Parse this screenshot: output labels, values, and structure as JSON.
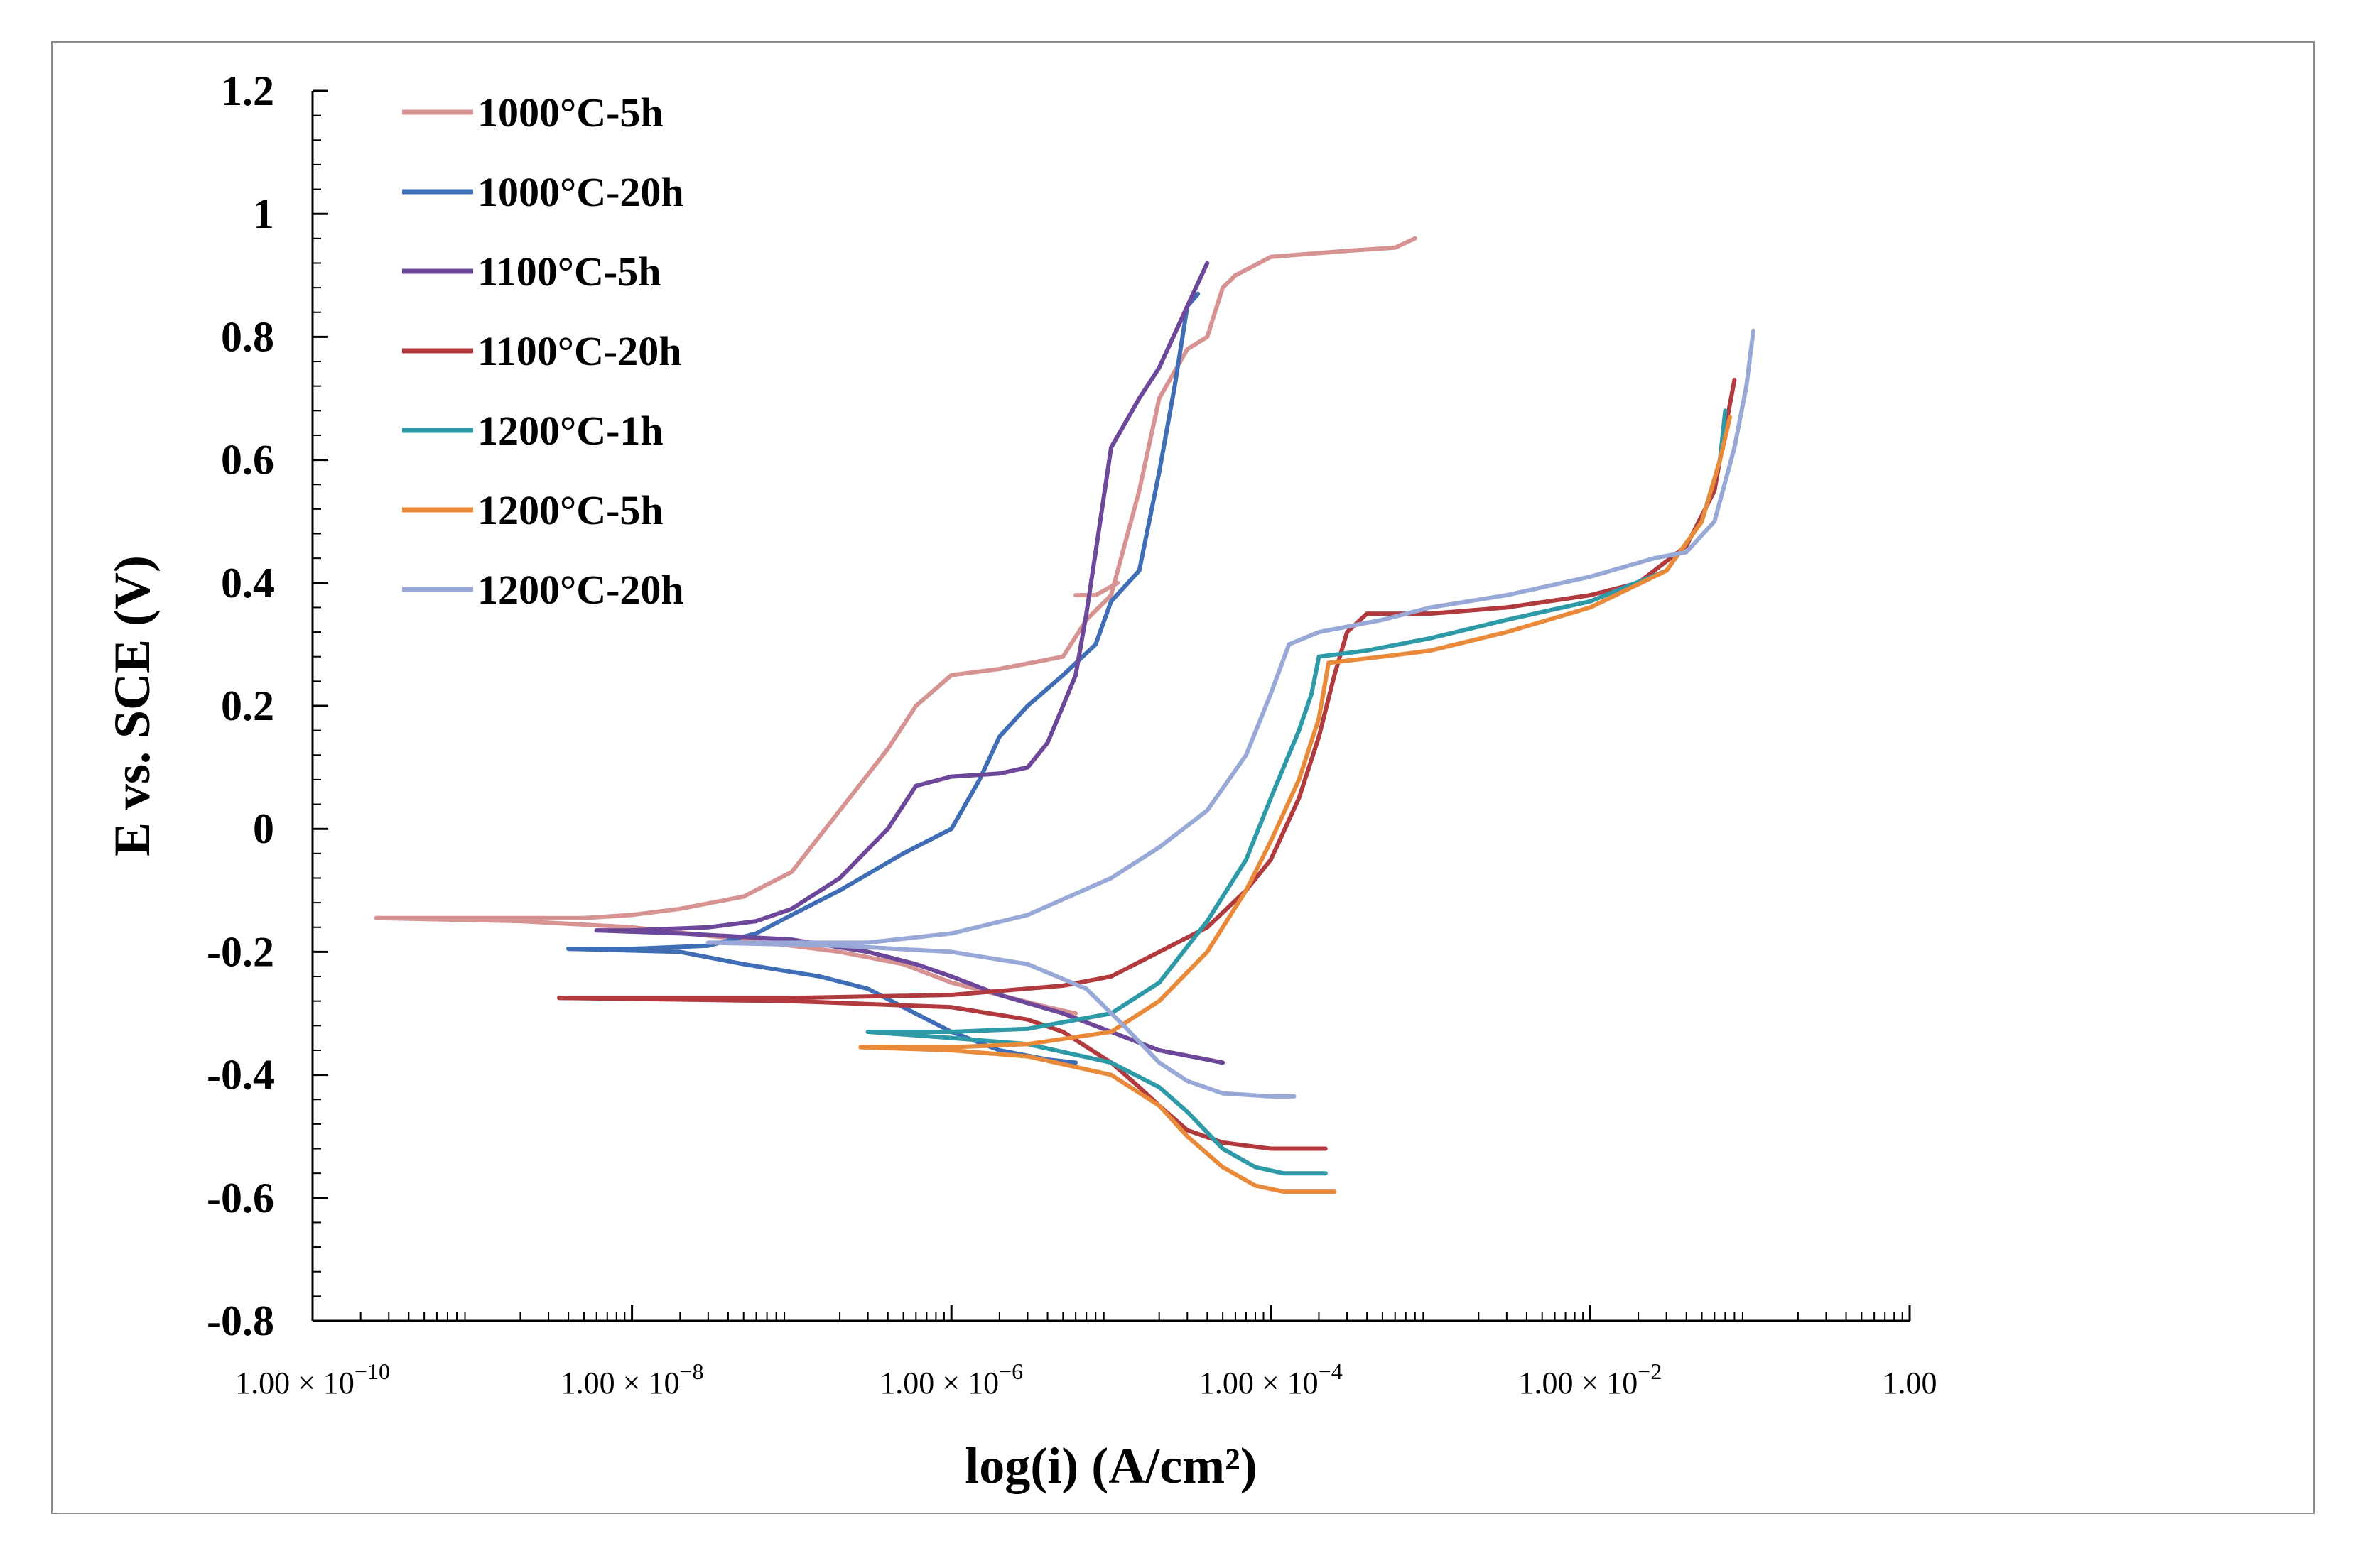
{
  "chart_data": {
    "type": "line",
    "title": "",
    "xlabel": "log(i) (A/cm²)",
    "ylabel": "E vs. SCE (V)",
    "xscale": "log",
    "xlim": [
      1e-10,
      1
    ],
    "ylim": [
      -0.8,
      1.2
    ],
    "yticks": [
      -0.8,
      -0.6,
      -0.4,
      -0.2,
      0,
      0.2,
      0.4,
      0.6,
      0.8,
      1,
      1.2
    ],
    "ytick_labels": [
      "-0.8",
      "-0.6",
      "-0.4",
      "-0.2",
      "0",
      "0.2",
      "0.4",
      "0.6",
      "0.8",
      "1",
      "1.2"
    ],
    "xticks": [
      1e-10,
      1e-08,
      1e-06,
      0.0001,
      0.01,
      1
    ],
    "xtick_labels": [
      {
        "mantissa": "1.00 × 10",
        "exp": "−10"
      },
      {
        "mantissa": "1.00 × 10",
        "exp": "−8"
      },
      {
        "mantissa": "1.00 × 10",
        "exp": "−6"
      },
      {
        "mantissa": "1.00 × 10",
        "exp": "−4"
      },
      {
        "mantissa": "1.00 × 10",
        "exp": "−2"
      },
      {
        "mantissa": "1.00",
        "exp": ""
      }
    ],
    "grid": false,
    "legend_position": "top-left",
    "series": [
      {
        "name": "1000°C-5h",
        "color": "#d69392",
        "points": [
          [
            2.5e-10,
            -0.145
          ],
          [
            1e-09,
            -0.145
          ],
          [
            5e-09,
            -0.145
          ],
          [
            1e-08,
            -0.14
          ],
          [
            2e-08,
            -0.13
          ],
          [
            5e-08,
            -0.11
          ],
          [
            1e-07,
            -0.07
          ],
          [
            2e-07,
            0.03
          ],
          [
            4e-07,
            0.13
          ],
          [
            6e-07,
            0.2
          ],
          [
            1e-06,
            0.25
          ],
          [
            2e-06,
            0.26
          ],
          [
            5e-06,
            0.28
          ],
          [
            7e-06,
            0.34
          ],
          [
            1e-05,
            0.38
          ],
          [
            1.5e-05,
            0.55
          ],
          [
            2e-05,
            0.7
          ],
          [
            3e-05,
            0.78
          ],
          [
            4e-05,
            0.8
          ],
          [
            5e-05,
            0.88
          ],
          [
            6e-05,
            0.9
          ],
          [
            0.0001,
            0.93
          ],
          [
            0.0003,
            0.94
          ],
          [
            0.0006,
            0.945
          ],
          [
            0.0008,
            0.96
          ]
        ],
        "cathodic": [
          [
            2.5e-10,
            -0.145
          ],
          [
            2e-09,
            -0.15
          ],
          [
            1e-08,
            -0.16
          ],
          [
            5e-08,
            -0.18
          ],
          [
            2e-07,
            -0.2
          ],
          [
            5e-07,
            -0.22
          ],
          [
            1e-06,
            -0.25
          ],
          [
            2e-06,
            -0.27
          ],
          [
            4e-06,
            -0.29
          ],
          [
            6e-06,
            -0.3
          ]
        ],
        "extra": [
          [
            6e-06,
            0.38
          ],
          [
            8e-06,
            0.38
          ],
          [
            1.1e-05,
            0.4
          ]
        ]
      },
      {
        "name": "1000°C-20h",
        "color": "#3f6db6",
        "points": [
          [
            4e-09,
            -0.195
          ],
          [
            1e-08,
            -0.195
          ],
          [
            3e-08,
            -0.19
          ],
          [
            6e-08,
            -0.17
          ],
          [
            1e-07,
            -0.14
          ],
          [
            2e-07,
            -0.1
          ],
          [
            5e-07,
            -0.04
          ],
          [
            1e-06,
            0.0
          ],
          [
            1.5e-06,
            0.08
          ],
          [
            2e-06,
            0.15
          ],
          [
            3e-06,
            0.2
          ],
          [
            5e-06,
            0.25
          ],
          [
            8e-06,
            0.3
          ],
          [
            1e-05,
            0.37
          ],
          [
            1.5e-05,
            0.42
          ],
          [
            2e-05,
            0.58
          ],
          [
            2.5e-05,
            0.72
          ],
          [
            3e-05,
            0.85
          ],
          [
            3.5e-05,
            0.87
          ]
        ],
        "cathodic": [
          [
            4e-09,
            -0.195
          ],
          [
            2e-08,
            -0.2
          ],
          [
            5e-08,
            -0.22
          ],
          [
            1.5e-07,
            -0.24
          ],
          [
            3e-07,
            -0.26
          ],
          [
            5e-07,
            -0.29
          ],
          [
            1e-06,
            -0.33
          ],
          [
            2e-06,
            -0.36
          ],
          [
            4e-06,
            -0.375
          ],
          [
            6e-06,
            -0.38
          ]
        ]
      },
      {
        "name": "1100°C-5h",
        "color": "#6d4799",
        "points": [
          [
            6e-09,
            -0.165
          ],
          [
            1e-08,
            -0.165
          ],
          [
            3e-08,
            -0.16
          ],
          [
            6e-08,
            -0.15
          ],
          [
            1e-07,
            -0.13
          ],
          [
            2e-07,
            -0.08
          ],
          [
            4e-07,
            0.0
          ],
          [
            6e-07,
            0.07
          ],
          [
            1e-06,
            0.085
          ],
          [
            2e-06,
            0.09
          ],
          [
            3e-06,
            0.1
          ],
          [
            4e-06,
            0.14
          ],
          [
            5e-06,
            0.2
          ],
          [
            6e-06,
            0.25
          ],
          [
            7e-06,
            0.35
          ],
          [
            8e-06,
            0.45
          ],
          [
            1e-05,
            0.62
          ],
          [
            1.5e-05,
            0.7
          ],
          [
            2e-05,
            0.75
          ],
          [
            3e-05,
            0.85
          ],
          [
            4e-05,
            0.92
          ]
        ],
        "cathodic": [
          [
            6e-09,
            -0.165
          ],
          [
            2e-08,
            -0.17
          ],
          [
            1e-07,
            -0.18
          ],
          [
            3e-07,
            -0.2
          ],
          [
            6e-07,
            -0.22
          ],
          [
            1e-06,
            -0.24
          ],
          [
            2e-06,
            -0.27
          ],
          [
            5e-06,
            -0.3
          ],
          [
            1e-05,
            -0.33
          ],
          [
            2e-05,
            -0.36
          ],
          [
            5e-05,
            -0.38
          ]
        ]
      },
      {
        "name": "1100°C-20h",
        "color": "#b03a3e",
        "points": [
          [
            3.5e-09,
            -0.275
          ],
          [
            1e-08,
            -0.275
          ],
          [
            1e-07,
            -0.275
          ],
          [
            1e-06,
            -0.27
          ],
          [
            5e-06,
            -0.255
          ],
          [
            1e-05,
            -0.24
          ],
          [
            2e-05,
            -0.2
          ],
          [
            4e-05,
            -0.16
          ],
          [
            7e-05,
            -0.1
          ],
          [
            0.0001,
            -0.05
          ],
          [
            0.00015,
            0.05
          ],
          [
            0.0002,
            0.15
          ],
          [
            0.00025,
            0.25
          ],
          [
            0.0003,
            0.32
          ],
          [
            0.0004,
            0.35
          ],
          [
            0.001,
            0.35
          ],
          [
            0.003,
            0.36
          ],
          [
            0.01,
            0.38
          ],
          [
            0.02,
            0.4
          ],
          [
            0.04,
            0.46
          ],
          [
            0.06,
            0.55
          ],
          [
            0.07,
            0.65
          ],
          [
            0.08,
            0.73
          ]
        ],
        "cathodic": [
          [
            3.5e-09,
            -0.275
          ],
          [
            1e-07,
            -0.28
          ],
          [
            1e-06,
            -0.29
          ],
          [
            3e-06,
            -0.31
          ],
          [
            5e-06,
            -0.33
          ],
          [
            1e-05,
            -0.38
          ],
          [
            1.5e-05,
            -0.42
          ],
          [
            2e-05,
            -0.45
          ],
          [
            3e-05,
            -0.49
          ],
          [
            5e-05,
            -0.51
          ],
          [
            0.0001,
            -0.52
          ],
          [
            0.00022,
            -0.52
          ]
        ]
      },
      {
        "name": "1200°C-1h",
        "color": "#2e9aa8",
        "points": [
          [
            3e-07,
            -0.33
          ],
          [
            1e-06,
            -0.33
          ],
          [
            3e-06,
            -0.325
          ],
          [
            1e-05,
            -0.3
          ],
          [
            2e-05,
            -0.25
          ],
          [
            4e-05,
            -0.15
          ],
          [
            7e-05,
            -0.05
          ],
          [
            0.0001,
            0.05
          ],
          [
            0.00015,
            0.16
          ],
          [
            0.00018,
            0.22
          ],
          [
            0.0002,
            0.28
          ],
          [
            0.0004,
            0.29
          ],
          [
            0.001,
            0.31
          ],
          [
            0.003,
            0.34
          ],
          [
            0.01,
            0.37
          ],
          [
            0.03,
            0.42
          ],
          [
            0.05,
            0.5
          ],
          [
            0.065,
            0.6
          ],
          [
            0.07,
            0.68
          ]
        ],
        "cathodic": [
          [
            3e-07,
            -0.33
          ],
          [
            1e-06,
            -0.34
          ],
          [
            3e-06,
            -0.35
          ],
          [
            1e-05,
            -0.38
          ],
          [
            2e-05,
            -0.42
          ],
          [
            3e-05,
            -0.46
          ],
          [
            5e-05,
            -0.52
          ],
          [
            8e-05,
            -0.55
          ],
          [
            0.00012,
            -0.56
          ],
          [
            0.00022,
            -0.56
          ]
        ]
      },
      {
        "name": "1200°C-5h",
        "color": "#e88a3a",
        "points": [
          [
            2.7e-07,
            -0.355
          ],
          [
            1e-06,
            -0.355
          ],
          [
            3e-06,
            -0.35
          ],
          [
            1e-05,
            -0.33
          ],
          [
            2e-05,
            -0.28
          ],
          [
            4e-05,
            -0.2
          ],
          [
            7e-05,
            -0.1
          ],
          [
            0.0001,
            -0.02
          ],
          [
            0.00015,
            0.08
          ],
          [
            0.0002,
            0.18
          ],
          [
            0.00023,
            0.27
          ],
          [
            0.0005,
            0.28
          ],
          [
            0.001,
            0.29
          ],
          [
            0.003,
            0.32
          ],
          [
            0.01,
            0.36
          ],
          [
            0.03,
            0.42
          ],
          [
            0.05,
            0.5
          ],
          [
            0.065,
            0.6
          ],
          [
            0.075,
            0.67
          ]
        ],
        "cathodic": [
          [
            2.7e-07,
            -0.355
          ],
          [
            1e-06,
            -0.36
          ],
          [
            3e-06,
            -0.37
          ],
          [
            1e-05,
            -0.4
          ],
          [
            2e-05,
            -0.45
          ],
          [
            3e-05,
            -0.5
          ],
          [
            5e-05,
            -0.55
          ],
          [
            8e-05,
            -0.58
          ],
          [
            0.00012,
            -0.59
          ],
          [
            0.00025,
            -0.59
          ]
        ]
      },
      {
        "name": "1200°C-20h",
        "color": "#98a9d8",
        "points": [
          [
            3e-08,
            -0.185
          ],
          [
            1e-07,
            -0.185
          ],
          [
            3e-07,
            -0.185
          ],
          [
            1e-06,
            -0.17
          ],
          [
            3e-06,
            -0.14
          ],
          [
            1e-05,
            -0.08
          ],
          [
            2e-05,
            -0.03
          ],
          [
            4e-05,
            0.03
          ],
          [
            7e-05,
            0.12
          ],
          [
            0.0001,
            0.22
          ],
          [
            0.00013,
            0.3
          ],
          [
            0.0002,
            0.32
          ],
          [
            0.0005,
            0.34
          ],
          [
            0.001,
            0.36
          ],
          [
            0.003,
            0.38
          ],
          [
            0.01,
            0.41
          ],
          [
            0.025,
            0.44
          ],
          [
            0.04,
            0.45
          ],
          [
            0.06,
            0.5
          ],
          [
            0.08,
            0.62
          ],
          [
            0.095,
            0.72
          ],
          [
            0.105,
            0.81
          ]
        ],
        "cathodic": [
          [
            3e-08,
            -0.185
          ],
          [
            2e-07,
            -0.19
          ],
          [
            1e-06,
            -0.2
          ],
          [
            3e-06,
            -0.22
          ],
          [
            7e-06,
            -0.26
          ],
          [
            1.2e-05,
            -0.32
          ],
          [
            2e-05,
            -0.38
          ],
          [
            3e-05,
            -0.41
          ],
          [
            5e-05,
            -0.43
          ],
          [
            0.0001,
            -0.435
          ],
          [
            0.00014,
            -0.435
          ]
        ]
      }
    ]
  }
}
